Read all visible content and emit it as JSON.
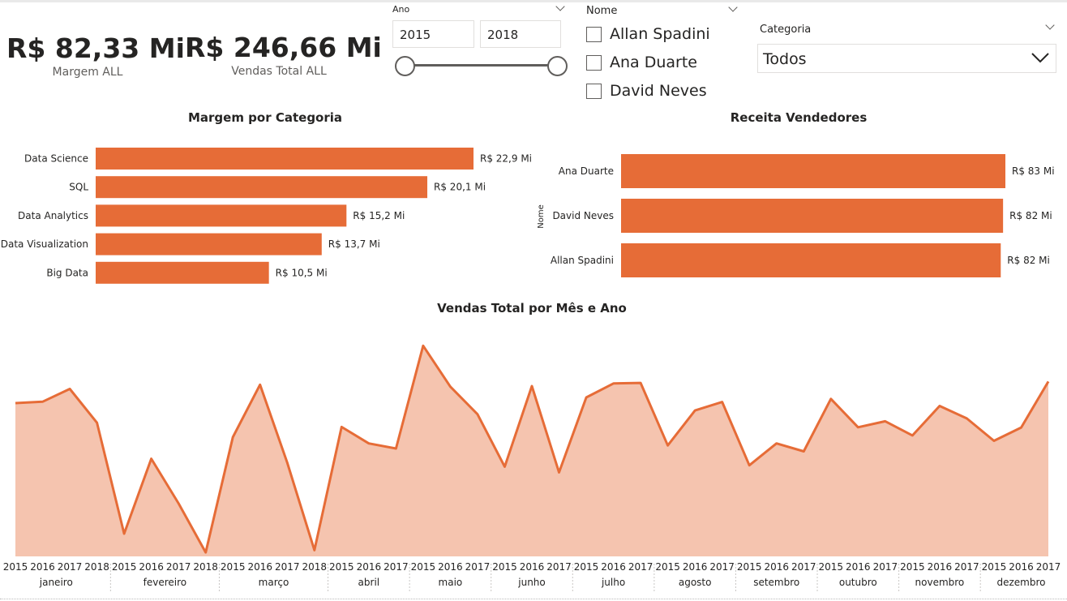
{
  "kpis": [
    {
      "value": "R$ 82,33 Mi",
      "label": "Margem ALL"
    },
    {
      "value": "R$ 246,66 Mi",
      "label": "Vendas Total ALL"
    }
  ],
  "year_slicer": {
    "title": "Ano",
    "start": "2015",
    "end": "2018"
  },
  "name_slicer": {
    "title": "Nome",
    "options": [
      "Allan Spadini",
      "Ana Duarte",
      "David Neves"
    ]
  },
  "category_slicer": {
    "title": "Categoria",
    "selected": "Todos"
  },
  "colors": {
    "bar": "#E66C37",
    "area_fill": "#F5C4AF",
    "line": "#E66C37"
  },
  "chart_data": [
    {
      "type": "bar",
      "orientation": "horizontal",
      "title": "Margem por Categoria",
      "categories": [
        "Data Science",
        "SQL",
        "Data Analytics",
        "Data Visualization",
        "Big Data"
      ],
      "values": [
        22.9,
        20.1,
        15.2,
        13.7,
        10.5
      ],
      "data_labels": [
        "R$ 22,9 Mi",
        "R$ 20,1 Mi",
        "R$ 15,2 Mi",
        "R$ 13,7 Mi",
        "R$ 10,5 Mi"
      ]
    },
    {
      "type": "bar",
      "orientation": "horizontal",
      "title": "Receita Vendedores",
      "ylabel": "Nome",
      "categories": [
        "Ana Duarte",
        "David Neves",
        "Allan Spadini"
      ],
      "values": [
        83,
        82.5,
        82
      ],
      "data_labels": [
        "R$ 83 Mi",
        "R$ 82 Mi",
        "R$ 82 Mi"
      ]
    },
    {
      "type": "area",
      "title": "Vendas Total por Mês e Ano",
      "groups": [
        {
          "month": "janeiro",
          "years": [
            "2015",
            "2016",
            "2017",
            "2018"
          ]
        },
        {
          "month": "fevereiro",
          "years": [
            "2015",
            "2016",
            "2017",
            "2018"
          ]
        },
        {
          "month": "março",
          "years": [
            "2015",
            "2016",
            "2017",
            "2018"
          ]
        },
        {
          "month": "abril",
          "years": [
            "2015",
            "2016",
            "2017"
          ]
        },
        {
          "month": "maio",
          "years": [
            "2015",
            "2016",
            "2017"
          ]
        },
        {
          "month": "junho",
          "years": [
            "2015",
            "2016",
            "2017"
          ]
        },
        {
          "month": "julho",
          "years": [
            "2015",
            "2016",
            "2017"
          ]
        },
        {
          "month": "agosto",
          "years": [
            "2015",
            "2016",
            "2017"
          ]
        },
        {
          "month": "setembro",
          "years": [
            "2015",
            "2016",
            "2017"
          ]
        },
        {
          "month": "outubro",
          "years": [
            "2015",
            "2016",
            "2017"
          ]
        },
        {
          "month": "novembro",
          "years": [
            "2015",
            "2016",
            "2017"
          ]
        },
        {
          "month": "dezembro",
          "years": [
            "2015",
            "2016",
            "2017"
          ]
        }
      ],
      "values": [
        5.4,
        5.45,
        5.9,
        4.71,
        0.8,
        3.44,
        1.87,
        0.14,
        4.2,
        6.05,
        3.3,
        0.22,
        4.56,
        3.98,
        3.8,
        7.42,
        5.98,
        5.01,
        3.16,
        6.0,
        2.96,
        5.6,
        6.09,
        6.11,
        3.91,
        5.14,
        5.44,
        3.21,
        3.98,
        3.7,
        5.55,
        4.55,
        4.76,
        4.26,
        5.3,
        4.86,
        4.07,
        4.54,
        6.16
      ],
      "ylim": [
        0,
        8
      ]
    }
  ]
}
